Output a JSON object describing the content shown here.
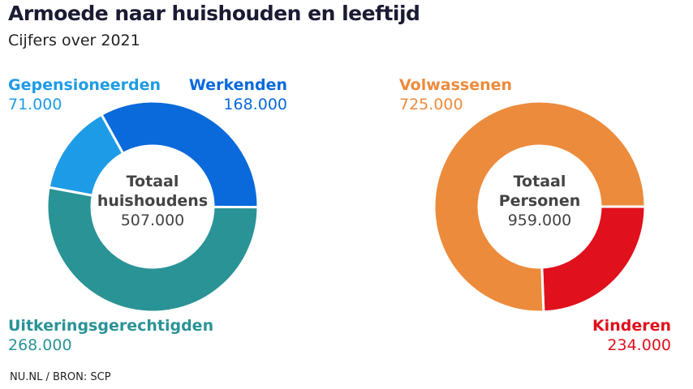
{
  "header": {
    "title": "Armoede naar huishouden en leeftijd",
    "subtitle": "Cijfers over 2021"
  },
  "source": "NU.NL / BRON: SCP",
  "chart_data": [
    {
      "type": "pie",
      "donut": true,
      "center_label": [
        "Totaal",
        "huishoudens"
      ],
      "center_value": "507.000",
      "slices": [
        {
          "name": "Werkenden",
          "value": 168000,
          "label": "168.000",
          "color": "#0a69db"
        },
        {
          "name": "Uitkeringsgerechtigden",
          "value": 268000,
          "label": "268.000",
          "color": "#2a9396"
        },
        {
          "name": "Gepensioneerden",
          "value": 71000,
          "label": "71.000",
          "color": "#1e9be6"
        }
      ]
    },
    {
      "type": "pie",
      "donut": true,
      "center_label": [
        "Totaal",
        "Personen"
      ],
      "center_value": "959.000",
      "slices": [
        {
          "name": "Kinderen",
          "value": 234000,
          "label": "234.000",
          "color": "#e0101d"
        },
        {
          "name": "Volwassenen",
          "value": 725000,
          "label": "725.000",
          "color": "#ec8b3c"
        }
      ]
    }
  ]
}
